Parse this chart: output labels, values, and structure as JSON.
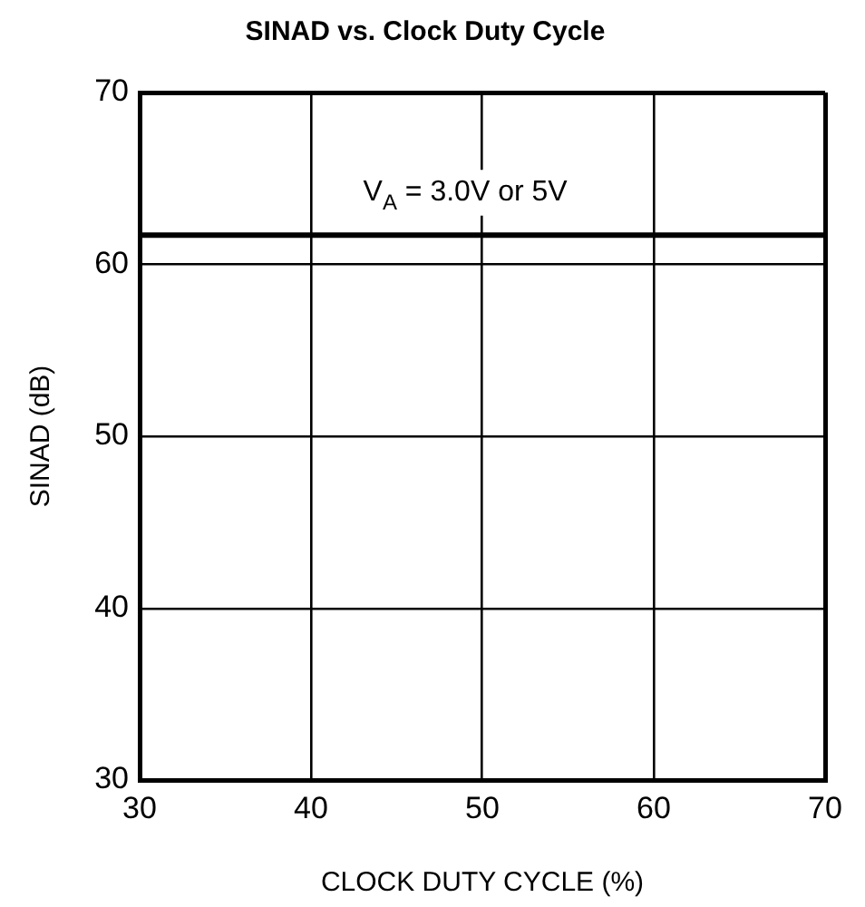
{
  "chart_data": {
    "type": "line",
    "title": "SINAD vs. Clock Duty Cycle",
    "xlabel": "CLOCK DUTY CYCLE (%)",
    "ylabel": "SINAD (dB)",
    "x": [
      30,
      70
    ],
    "series": [
      {
        "color": "#000000",
        "values": [
          61.7,
          61.7
        ]
      }
    ],
    "xlim": [
      30,
      70
    ],
    "ylim": [
      30,
      70
    ],
    "xticks": [
      30,
      40,
      50,
      60,
      70
    ],
    "yticks": [
      30,
      40,
      50,
      60,
      70
    ],
    "grid": true,
    "annotations": [
      {
        "text": "V$_{A}$ = 3.0V or 5V",
        "x": 49,
        "y": 61.7
      }
    ]
  }
}
